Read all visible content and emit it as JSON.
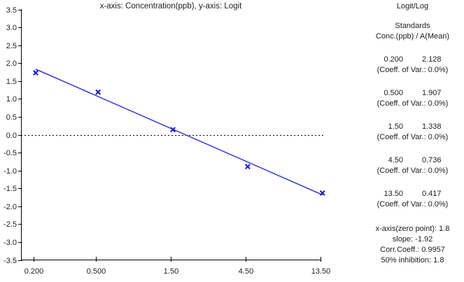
{
  "chart_data": {
    "type": "scatter",
    "title": "x-axis: Concentration(ppb), y-axis: Logit",
    "xlabel": "Concentration(ppb)",
    "ylabel": "Logit",
    "x_scale": "log",
    "x": [
      0.2,
      0.5,
      1.5,
      4.5,
      13.5
    ],
    "y_logit": [
      1.73,
      1.19,
      0.14,
      -0.89,
      -1.63
    ],
    "xtick_labels": [
      "0.200",
      "0.500",
      "1.50",
      "4.50",
      "13.50"
    ],
    "ylim": [
      -3.5,
      3.5
    ],
    "ytick_step": 0.5,
    "zero_line_y": 0.0,
    "fit": {
      "type": "logit-log line",
      "slope": -1.92,
      "x_zero_point": 1.8,
      "corr_coeff": 0.9957,
      "inhibition_50": 1.8
    },
    "grid": false,
    "legend": "none",
    "marker": "x",
    "line_color": "#2b2bdd",
    "marker_color": "#1e1ecf",
    "axis_color": "#000000",
    "text_color": "#1c1c1c"
  },
  "right_panel": {
    "method": "Logit/Log",
    "standards_title": "Standards",
    "columns_header": "Conc.(ppb) / A(Mean)",
    "standards": [
      {
        "conc": "0.200",
        "a_mean": "2.128",
        "cv": "(Coeff. of Var.: 0.0%)"
      },
      {
        "conc": "0.500",
        "a_mean": "1.907",
        "cv": "(Coeff. of Var.: 0.0%)"
      },
      {
        "conc": "1.50",
        "a_mean": "1.338",
        "cv": "(Coeff. of Var.: 0.0%)"
      },
      {
        "conc": "4.50",
        "a_mean": "0.736",
        "cv": "(Coeff. of Var.: 0.0%)"
      },
      {
        "conc": "13.50",
        "a_mean": "0.417",
        "cv": "(Coeff. of Var.: 0.0%)"
      }
    ],
    "results": {
      "zero_point": "x-axis(zero point): 1.8",
      "slope": "slope: -1.92",
      "corr_coeff": "Corr.Coeff.: 0.9957",
      "inhibition50": "50% inhibition: 1.8"
    }
  }
}
